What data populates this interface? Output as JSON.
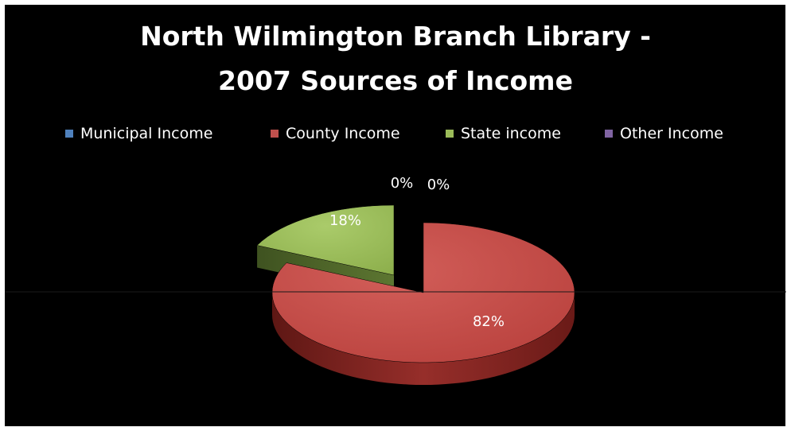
{
  "chart_data": {
    "type": "pie",
    "title_lines": [
      "North Wilmington Branch Library -",
      "2007 Sources of Income"
    ],
    "categories": [
      "Municipal Income",
      "County Income",
      "State income",
      "Other Income"
    ],
    "values": [
      0,
      82,
      18,
      0
    ],
    "data_labels": [
      "0%",
      "82%",
      "18%",
      "0%"
    ],
    "colors": [
      "#4F81BD",
      "#C0504D",
      "#9BBB59",
      "#8064A2"
    ],
    "legend_position": "top",
    "style": "3d-exploded"
  }
}
